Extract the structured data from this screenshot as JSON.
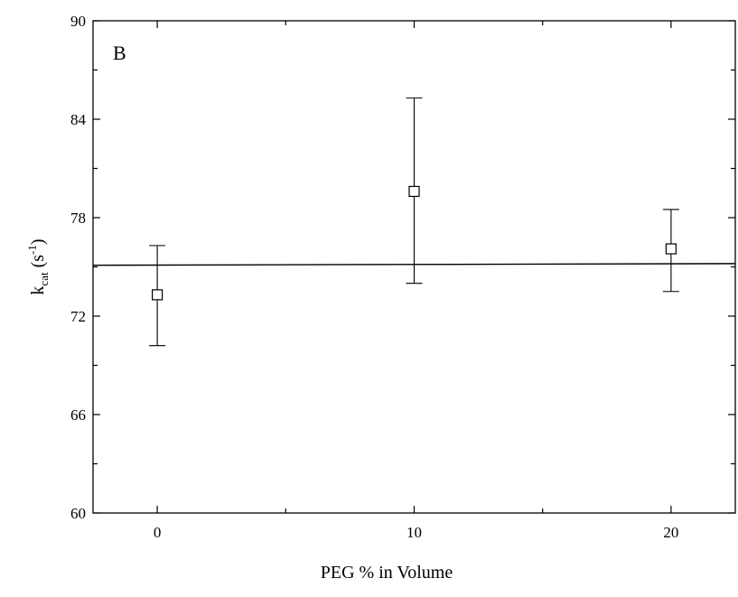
{
  "chart_data": {
    "type": "scatter",
    "panel_label": "B",
    "xlabel": "PEG % in Volume",
    "ylabel": {
      "main": "k",
      "sub": "cat",
      "unit_open": " (s",
      "unit_sup": "-1",
      "unit_close": ")"
    },
    "xlim": [
      -2.5,
      22.5
    ],
    "ylim": [
      60,
      90
    ],
    "xticks": [
      0,
      10,
      20
    ],
    "yticks": [
      60,
      66,
      72,
      78,
      84,
      90
    ],
    "series": [
      {
        "marker": "open-square",
        "points": [
          {
            "x": 0,
            "y": 73.3,
            "err_low": 70.2,
            "err_high": 76.3
          },
          {
            "x": 10,
            "y": 79.6,
            "err_low": 74.0,
            "err_high": 85.3
          },
          {
            "x": 20,
            "y": 76.1,
            "err_low": 73.5,
            "err_high": 78.5
          }
        ]
      }
    ],
    "reference_line": {
      "y_start": 75.1,
      "y_end": 75.2
    },
    "grid": false,
    "legend": "none"
  }
}
